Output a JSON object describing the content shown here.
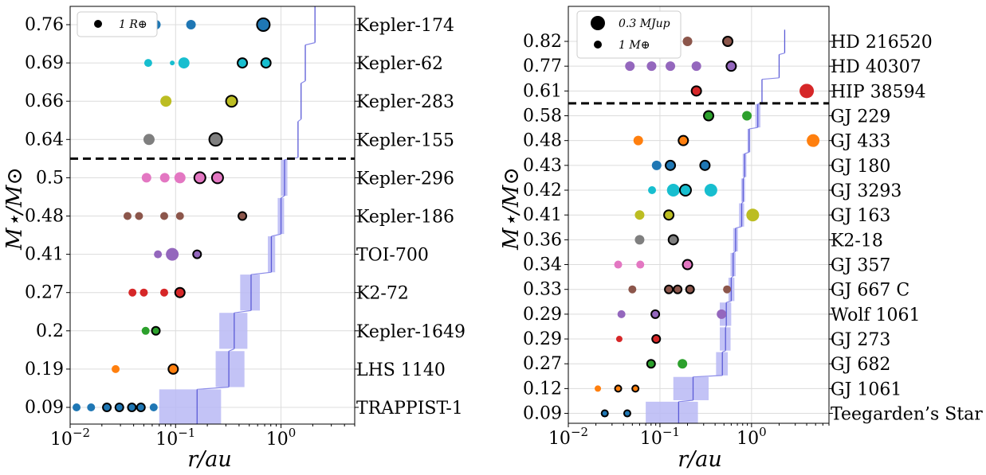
{
  "chart_data": [
    {
      "type": "scatter",
      "xscale": "log",
      "xlim": [
        0.01,
        5
      ],
      "xticks": [
        0.01,
        0.1,
        1
      ],
      "xtick_labels": [
        [
          "10",
          "−2"
        ],
        [
          "10",
          "−1"
        ],
        [
          "10",
          "0"
        ]
      ],
      "xlabel": "r/au",
      "ylabel": "M⋆/M⊙",
      "grid": true,
      "legend": {
        "position": "top-left",
        "entries": [
          {
            "label": "1 R⊕",
            "size": 5
          }
        ]
      },
      "habitable_zone_color": "#b8b8f5",
      "divider_after_row": 3,
      "rows": [
        {
          "system": "Kepler-174",
          "mass": "0.76",
          "hz": null,
          "hz_line": [
            2.1
          ],
          "planets": [
            {
              "r": 0.065,
              "size": 6,
              "color": "#1f77b4",
              "outline": false
            },
            {
              "r": 0.14,
              "size": 6,
              "color": "#1f77b4",
              "outline": false
            },
            {
              "r": 0.68,
              "size": 8,
              "color": "#1f77b4",
              "outline": true
            }
          ]
        },
        {
          "system": "Kepler-62",
          "mass": "0.69",
          "hz": null,
          "hz_line": [
            1.7
          ],
          "planets": [
            {
              "r": 0.055,
              "size": 5,
              "color": "#17becf",
              "outline": false
            },
            {
              "r": 0.093,
              "size": 3,
              "color": "#17becf",
              "outline": false
            },
            {
              "r": 0.12,
              "size": 7,
              "color": "#17becf",
              "outline": false
            },
            {
              "r": 0.43,
              "size": 6,
              "color": "#17becf",
              "outline": true
            },
            {
              "r": 0.72,
              "size": 6,
              "color": "#17becf",
              "outline": true
            }
          ]
        },
        {
          "system": "Kepler-283",
          "mass": "0.66",
          "hz": null,
          "hz_line": [
            1.55
          ],
          "planets": [
            {
              "r": 0.081,
              "size": 7,
              "color": "#bcbd22",
              "outline": false
            },
            {
              "r": 0.34,
              "size": 7,
              "color": "#bcbd22",
              "outline": true
            }
          ]
        },
        {
          "system": "Kepler-155",
          "mass": "0.64",
          "hz": null,
          "hz_line": [
            1.45
          ],
          "planets": [
            {
              "r": 0.056,
              "size": 7,
              "color": "#7f7f7f",
              "outline": false
            },
            {
              "r": 0.24,
              "size": 8,
              "color": "#7f7f7f",
              "outline": true
            }
          ]
        },
        {
          "system": "Kepler-296",
          "mass": "0.5",
          "hz": [
            1.0,
            1.15
          ],
          "hz_line": [
            1.08
          ],
          "planets": [
            {
              "r": 0.053,
              "size": 6,
              "color": "#e377c2",
              "outline": false
            },
            {
              "r": 0.079,
              "size": 6,
              "color": "#e377c2",
              "outline": false
            },
            {
              "r": 0.11,
              "size": 7,
              "color": "#e377c2",
              "outline": false
            },
            {
              "r": 0.17,
              "size": 7,
              "color": "#e377c2",
              "outline": true
            },
            {
              "r": 0.25,
              "size": 7,
              "color": "#e377c2",
              "outline": true
            }
          ]
        },
        {
          "system": "Kepler-186",
          "mass": "0.48",
          "hz": [
            0.93,
            1.07
          ],
          "hz_line": [
            1.0
          ],
          "planets": [
            {
              "r": 0.035,
              "size": 5,
              "color": "#8c564b",
              "outline": false
            },
            {
              "r": 0.045,
              "size": 5,
              "color": "#8c564b",
              "outline": false
            },
            {
              "r": 0.078,
              "size": 5,
              "color": "#8c564b",
              "outline": false
            },
            {
              "r": 0.11,
              "size": 5,
              "color": "#8c564b",
              "outline": false
            },
            {
              "r": 0.43,
              "size": 5,
              "color": "#8c564b",
              "outline": true
            }
          ]
        },
        {
          "system": "TOI-700",
          "mass": "0.41",
          "hz": [
            0.75,
            0.88
          ],
          "hz_line": [
            0.81
          ],
          "planets": [
            {
              "r": 0.068,
              "size": 5,
              "color": "#9467bd",
              "outline": false
            },
            {
              "r": 0.093,
              "size": 8,
              "color": "#9467bd",
              "outline": false
            },
            {
              "r": 0.16,
              "size": 5,
              "color": "#9467bd",
              "outline": true
            }
          ]
        },
        {
          "system": "K2-72",
          "mass": "0.27",
          "hz": [
            0.41,
            0.63
          ],
          "hz_line": [
            0.52
          ],
          "planets": [
            {
              "r": 0.039,
              "size": 5,
              "color": "#d62728",
              "outline": false
            },
            {
              "r": 0.05,
              "size": 5,
              "color": "#d62728",
              "outline": false
            },
            {
              "r": 0.078,
              "size": 5,
              "color": "#d62728",
              "outline": false
            },
            {
              "r": 0.11,
              "size": 6,
              "color": "#d62728",
              "outline": true
            }
          ]
        },
        {
          "system": "Kepler-1649",
          "mass": "0.2",
          "hz": [
            0.26,
            0.48
          ],
          "hz_line": [
            0.36
          ],
          "planets": [
            {
              "r": 0.052,
              "size": 5,
              "color": "#2ca02c",
              "outline": false
            },
            {
              "r": 0.065,
              "size": 5,
              "color": "#2ca02c",
              "outline": true
            }
          ]
        },
        {
          "system": "LHS 1140",
          "mass": "0.19",
          "hz": [
            0.24,
            0.45
          ],
          "hz_line": [
            0.32
          ],
          "planets": [
            {
              "r": 0.027,
              "size": 5,
              "color": "#ff7f0e",
              "outline": false
            },
            {
              "r": 0.095,
              "size": 6,
              "color": "#ff7f0e",
              "outline": true
            }
          ]
        },
        {
          "system": "TRAPPIST-1",
          "mass": "0.09",
          "hz": [
            0.07,
            0.27
          ],
          "hz_line": [
            0.16
          ],
          "planets": [
            {
              "r": 0.0115,
              "size": 5,
              "color": "#1f77b4",
              "outline": false
            },
            {
              "r": 0.0158,
              "size": 5,
              "color": "#1f77b4",
              "outline": false
            },
            {
              "r": 0.0223,
              "size": 5,
              "color": "#1f77b4",
              "outline": true
            },
            {
              "r": 0.0293,
              "size": 5,
              "color": "#1f77b4",
              "outline": true
            },
            {
              "r": 0.0385,
              "size": 5,
              "color": "#1f77b4",
              "outline": true
            },
            {
              "r": 0.0469,
              "size": 5,
              "color": "#1f77b4",
              "outline": true
            },
            {
              "r": 0.062,
              "size": 5,
              "color": "#1f77b4",
              "outline": false
            }
          ]
        }
      ]
    },
    {
      "type": "scatter",
      "xscale": "log",
      "xlim": [
        0.01,
        7
      ],
      "xticks": [
        0.01,
        0.1,
        1
      ],
      "xtick_labels": [
        [
          "10",
          "−2"
        ],
        [
          "10",
          "−1"
        ],
        [
          "10",
          "0"
        ]
      ],
      "xlabel": "r/au",
      "ylabel": "M⋆/M⊙",
      "grid": true,
      "legend": {
        "position": "top-left",
        "entries": [
          {
            "label": "0.3 MJup",
            "size": 9
          },
          {
            "label": "1 M⊕",
            "size": 5
          }
        ]
      },
      "habitable_zone_color": "#b8b8f5",
      "divider_after_row": 2,
      "rows": [
        {
          "system": "HD 216520",
          "mass": "0.82",
          "hz": null,
          "hz_line": [
            2.3
          ],
          "planets": [
            {
              "r": 0.2,
              "size": 6,
              "color": "#8c564b",
              "outline": false
            },
            {
              "r": 0.55,
              "size": 6,
              "color": "#8c564b",
              "outline": true
            }
          ]
        },
        {
          "system": "HD 40307",
          "mass": "0.77",
          "hz": null,
          "hz_line": [
            2.0
          ],
          "planets": [
            {
              "r": 0.047,
              "size": 6,
              "color": "#9467bd",
              "outline": false
            },
            {
              "r": 0.081,
              "size": 6,
              "color": "#9467bd",
              "outline": false
            },
            {
              "r": 0.13,
              "size": 6,
              "color": "#9467bd",
              "outline": false
            },
            {
              "r": 0.25,
              "size": 6,
              "color": "#9467bd",
              "outline": false
            },
            {
              "r": 0.6,
              "size": 6,
              "color": "#9467bd",
              "outline": true
            }
          ]
        },
        {
          "system": "HIP 38594",
          "mass": "0.61",
          "hz": null,
          "hz_line": [
            1.3
          ],
          "planets": [
            {
              "r": 0.25,
              "size": 6,
              "color": "#d62728",
              "outline": true
            },
            {
              "r": 4.0,
              "size": 9,
              "color": "#d62728",
              "outline": false
            }
          ]
        },
        {
          "system": "GJ 229",
          "mass": "0.58",
          "hz": [
            1.1,
            1.25
          ],
          "hz_line": [
            1.17
          ],
          "planets": [
            {
              "r": 0.34,
              "size": 6,
              "color": "#2ca02c",
              "outline": true
            },
            {
              "r": 0.89,
              "size": 6,
              "color": "#2ca02c",
              "outline": false
            }
          ]
        },
        {
          "system": "GJ 433",
          "mass": "0.48",
          "hz": [
            0.9,
            0.97
          ],
          "hz_line": [
            0.94
          ],
          "planets": [
            {
              "r": 0.058,
              "size": 6,
              "color": "#ff7f0e",
              "outline": false
            },
            {
              "r": 0.18,
              "size": 6,
              "color": "#ff7f0e",
              "outline": true
            },
            {
              "r": 4.7,
              "size": 8,
              "color": "#ff7f0e",
              "outline": false
            }
          ]
        },
        {
          "system": "GJ 180",
          "mass": "0.43",
          "hz": [
            0.8,
            0.88
          ],
          "hz_line": [
            0.84
          ],
          "planets": [
            {
              "r": 0.092,
              "size": 6,
              "color": "#1f77b4",
              "outline": false
            },
            {
              "r": 0.13,
              "size": 6,
              "color": "#1f77b4",
              "outline": true
            },
            {
              "r": 0.31,
              "size": 6,
              "color": "#1f77b4",
              "outline": true
            }
          ]
        },
        {
          "system": "GJ 3293",
          "mass": "0.42",
          "hz": [
            0.77,
            0.85
          ],
          "hz_line": [
            0.81
          ],
          "planets": [
            {
              "r": 0.082,
              "size": 5,
              "color": "#17becf",
              "outline": false
            },
            {
              "r": 0.14,
              "size": 8,
              "color": "#17becf",
              "outline": false
            },
            {
              "r": 0.19,
              "size": 7,
              "color": "#17becf",
              "outline": true
            },
            {
              "r": 0.36,
              "size": 8,
              "color": "#17becf",
              "outline": false
            }
          ]
        },
        {
          "system": "GJ 163",
          "mass": "0.41",
          "hz": [
            0.73,
            0.83
          ],
          "hz_line": [
            0.78
          ],
          "planets": [
            {
              "r": 0.06,
              "size": 6,
              "color": "#bcbd22",
              "outline": false
            },
            {
              "r": 0.125,
              "size": 6,
              "color": "#bcbd22",
              "outline": true
            },
            {
              "r": 1.03,
              "size": 8,
              "color": "#bcbd22",
              "outline": false
            }
          ]
        },
        {
          "system": "K2-18",
          "mass": "0.36",
          "hz": [
            0.63,
            0.71
          ],
          "hz_line": [
            0.67
          ],
          "planets": [
            {
              "r": 0.06,
              "size": 6,
              "color": "#7f7f7f",
              "outline": false
            },
            {
              "r": 0.14,
              "size": 6,
              "color": "#7f7f7f",
              "outline": true
            }
          ]
        },
        {
          "system": "GJ 357",
          "mass": "0.34",
          "hz": [
            0.59,
            0.67
          ],
          "hz_line": [
            0.63
          ],
          "planets": [
            {
              "r": 0.035,
              "size": 5,
              "color": "#e377c2",
              "outline": false
            },
            {
              "r": 0.061,
              "size": 5,
              "color": "#e377c2",
              "outline": false
            },
            {
              "r": 0.2,
              "size": 6,
              "color": "#e377c2",
              "outline": true
            }
          ]
        },
        {
          "system": "GJ 667 C",
          "mass": "0.33",
          "hz": [
            0.56,
            0.65
          ],
          "hz_line": [
            0.6
          ],
          "planets": [
            {
              "r": 0.05,
              "size": 5,
              "color": "#8c564b",
              "outline": false
            },
            {
              "r": 0.125,
              "size": 5,
              "color": "#8c564b",
              "outline": true
            },
            {
              "r": 0.156,
              "size": 5,
              "color": "#8c564b",
              "outline": true
            },
            {
              "r": 0.213,
              "size": 5,
              "color": "#8c564b",
              "outline": true
            },
            {
              "r": 0.54,
              "size": 5,
              "color": "#8c564b",
              "outline": false
            }
          ]
        },
        {
          "system": "Wolf 1061",
          "mass": "0.29",
          "hz": [
            0.45,
            0.6
          ],
          "hz_line": [
            0.53
          ],
          "planets": [
            {
              "r": 0.038,
              "size": 5,
              "color": "#9467bd",
              "outline": false
            },
            {
              "r": 0.089,
              "size": 5,
              "color": "#9467bd",
              "outline": true
            },
            {
              "r": 0.47,
              "size": 6,
              "color": "#9467bd",
              "outline": false
            }
          ]
        },
        {
          "system": "GJ 273",
          "mass": "0.29",
          "hz": [
            0.45,
            0.59
          ],
          "hz_line": [
            0.52
          ],
          "planets": [
            {
              "r": 0.036,
              "size": 4,
              "color": "#d62728",
              "outline": false
            },
            {
              "r": 0.091,
              "size": 5,
              "color": "#d62728",
              "outline": true
            }
          ]
        },
        {
          "system": "GJ 682",
          "mass": "0.27",
          "hz": [
            0.41,
            0.55
          ],
          "hz_line": [
            0.48
          ],
          "planets": [
            {
              "r": 0.08,
              "size": 5,
              "color": "#2ca02c",
              "outline": true
            },
            {
              "r": 0.176,
              "size": 6,
              "color": "#2ca02c",
              "outline": false
            }
          ]
        },
        {
          "system": "GJ 1061",
          "mass": "0.12",
          "hz": [
            0.14,
            0.34
          ],
          "hz_line": [
            0.23
          ],
          "planets": [
            {
              "r": 0.021,
              "size": 4,
              "color": "#ff7f0e",
              "outline": false
            },
            {
              "r": 0.035,
              "size": 4,
              "color": "#ff7f0e",
              "outline": true
            },
            {
              "r": 0.054,
              "size": 4,
              "color": "#ff7f0e",
              "outline": true
            }
          ]
        },
        {
          "system": "Teegarden’s Star",
          "mass": "0.09",
          "hz": [
            0.07,
            0.26
          ],
          "hz_line": [
            0.16
          ],
          "planets": [
            {
              "r": 0.025,
              "size": 4,
              "color": "#1f77b4",
              "outline": true
            },
            {
              "r": 0.044,
              "size": 4,
              "color": "#1f77b4",
              "outline": true
            }
          ]
        }
      ]
    }
  ]
}
